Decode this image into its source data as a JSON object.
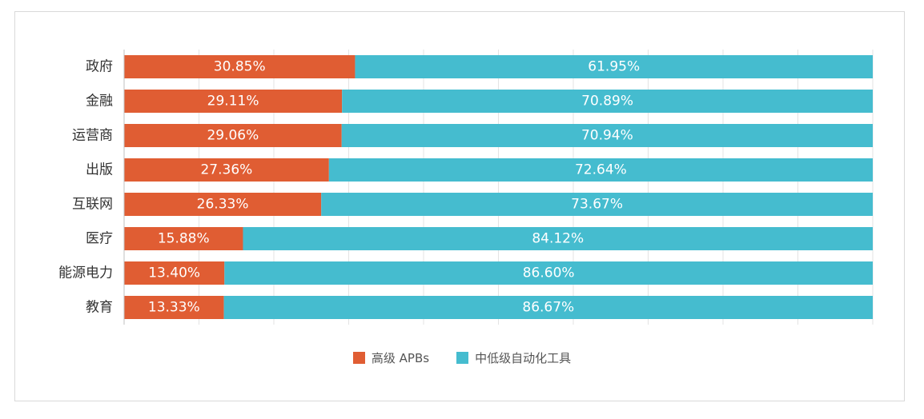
{
  "chart_data": {
    "type": "bar",
    "orientation": "horizontal",
    "stacked": true,
    "categories": [
      "政府",
      "金融",
      "运营商",
      "出版",
      "互联网",
      "医疗",
      "能源电力",
      "教育"
    ],
    "series": [
      {
        "name": "高级 APBs",
        "color": "#e05d33",
        "values": [
          30.85,
          29.11,
          29.06,
          27.36,
          26.33,
          15.88,
          13.4,
          13.33
        ],
        "labels": [
          "30.85%",
          "29.11%",
          "29.06%",
          "27.36%",
          "26.33%",
          "15.88%",
          "13.40%",
          "13.33%"
        ]
      },
      {
        "name": "中低级自动化工具",
        "color": "#45bccf",
        "values": [
          61.95,
          70.89,
          70.94,
          72.64,
          73.67,
          84.12,
          86.6,
          86.67
        ],
        "labels": [
          "61.95%",
          "70.89%",
          "70.94%",
          "72.64%",
          "73.67%",
          "84.12%",
          "86.60%",
          "86.67%"
        ]
      }
    ],
    "xlim": [
      0,
      100
    ],
    "grid": true,
    "legend_position": "bottom-center"
  }
}
